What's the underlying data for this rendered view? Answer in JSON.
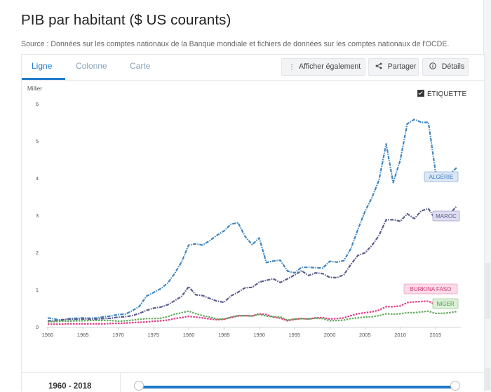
{
  "page": {
    "title": "PIB par habitant ($ US courants)",
    "source": "Source : Données sur les comptes nationaux de la Banque mondiale et fichiers de données sur les comptes nationaux de l'OCDE."
  },
  "tabs": [
    {
      "label": "Ligne",
      "active": true
    },
    {
      "label": "Colonne",
      "active": false
    },
    {
      "label": "Carte",
      "active": false
    }
  ],
  "toolbar": {
    "show_also_label": "Afficher également",
    "share_label": "Partager",
    "details_label": "Détails"
  },
  "label_toggle": {
    "label": "ÉTIQUETTE",
    "checked": true
  },
  "range": {
    "label": "1960 - 2018"
  },
  "colors": {
    "accent": "#1f79c8",
    "algerie": "#3f86c2",
    "maroc": "#5a5e8e",
    "burkina": "#e23a84",
    "niger": "#63ac5e"
  },
  "chart_data": {
    "type": "line",
    "ylabel": "Millier",
    "ylim": [
      0,
      6
    ],
    "yticks": [
      "0",
      "1",
      "2",
      "3",
      "4",
      "5",
      "6"
    ],
    "xlim": [
      1960,
      2018
    ],
    "xticks": [
      "1960",
      "1965",
      "1970",
      "1975",
      "1980",
      "1985",
      "1990",
      "1995",
      "2000",
      "2005",
      "2010",
      "2015"
    ],
    "x": [
      1960,
      1961,
      1962,
      1963,
      1964,
      1965,
      1966,
      1967,
      1968,
      1969,
      1970,
      1971,
      1972,
      1973,
      1974,
      1975,
      1976,
      1977,
      1978,
      1979,
      1980,
      1981,
      1982,
      1983,
      1984,
      1985,
      1986,
      1987,
      1988,
      1989,
      1990,
      1991,
      1992,
      1993,
      1994,
      1995,
      1996,
      1997,
      1998,
      1999,
      2000,
      2001,
      2002,
      2003,
      2004,
      2005,
      2006,
      2007,
      2008,
      2009,
      2010,
      2011,
      2012,
      2013,
      2014,
      2015,
      2016,
      2017,
      2018
    ],
    "series": [
      {
        "name": "ALGÉRIE",
        "color_key": "algerie",
        "values": [
          0.24,
          0.21,
          0.17,
          0.22,
          0.23,
          0.24,
          0.23,
          0.24,
          0.27,
          0.29,
          0.33,
          0.34,
          0.43,
          0.55,
          0.82,
          0.92,
          1.02,
          1.17,
          1.43,
          1.75,
          2.2,
          2.23,
          2.2,
          2.32,
          2.46,
          2.58,
          2.76,
          2.8,
          2.43,
          2.21,
          2.39,
          1.73,
          1.77,
          1.79,
          1.5,
          1.45,
          1.6,
          1.6,
          1.59,
          1.58,
          1.76,
          1.74,
          1.78,
          2.1,
          2.62,
          3.1,
          3.48,
          3.95,
          4.92,
          3.88,
          4.48,
          5.46,
          5.58,
          5.5,
          5.5,
          4.18,
          3.95,
          4.11,
          4.28
        ]
      },
      {
        "name": "MAROC",
        "color_key": "maroc",
        "values": [
          0.16,
          0.16,
          0.19,
          0.2,
          0.2,
          0.21,
          0.2,
          0.21,
          0.22,
          0.23,
          0.26,
          0.27,
          0.3,
          0.36,
          0.44,
          0.5,
          0.53,
          0.59,
          0.7,
          0.82,
          1.08,
          0.86,
          0.84,
          0.76,
          0.69,
          0.66,
          0.83,
          0.93,
          1.05,
          1.06,
          1.2,
          1.25,
          1.29,
          1.19,
          1.29,
          1.39,
          1.51,
          1.38,
          1.45,
          1.43,
          1.33,
          1.32,
          1.4,
          1.68,
          1.92,
          1.99,
          2.19,
          2.46,
          2.88,
          2.88,
          2.84,
          3.04,
          2.91,
          3.12,
          3.18,
          2.88,
          2.9,
          3.04,
          3.24
        ]
      },
      {
        "name": "BURKINA FASO",
        "color_key": "burkina",
        "values": [
          0.07,
          0.07,
          0.07,
          0.08,
          0.08,
          0.08,
          0.08,
          0.08,
          0.08,
          0.09,
          0.09,
          0.1,
          0.11,
          0.12,
          0.13,
          0.15,
          0.16,
          0.18,
          0.22,
          0.25,
          0.28,
          0.26,
          0.24,
          0.21,
          0.19,
          0.2,
          0.25,
          0.29,
          0.3,
          0.29,
          0.35,
          0.33,
          0.26,
          0.23,
          0.16,
          0.2,
          0.22,
          0.21,
          0.24,
          0.25,
          0.21,
          0.22,
          0.24,
          0.3,
          0.35,
          0.38,
          0.4,
          0.45,
          0.54,
          0.54,
          0.56,
          0.65,
          0.67,
          0.68,
          0.69,
          0.59,
          0.62,
          0.65,
          0.73
        ]
      },
      {
        "name": "NIGER",
        "color_key": "niger",
        "values": [
          0.13,
          0.14,
          0.15,
          0.15,
          0.16,
          0.16,
          0.17,
          0.17,
          0.17,
          0.17,
          0.15,
          0.16,
          0.18,
          0.2,
          0.22,
          0.22,
          0.23,
          0.27,
          0.34,
          0.38,
          0.42,
          0.35,
          0.3,
          0.26,
          0.21,
          0.21,
          0.26,
          0.3,
          0.3,
          0.29,
          0.33,
          0.29,
          0.27,
          0.27,
          0.18,
          0.21,
          0.22,
          0.21,
          0.23,
          0.22,
          0.16,
          0.17,
          0.18,
          0.22,
          0.24,
          0.26,
          0.27,
          0.3,
          0.35,
          0.34,
          0.35,
          0.38,
          0.38,
          0.4,
          0.42,
          0.36,
          0.36,
          0.38,
          0.41
        ]
      }
    ],
    "labels": [
      {
        "text": "ALGÉRIE",
        "series": 0
      },
      {
        "text": "MAROC",
        "series": 1
      },
      {
        "text": "BURKINA FASO",
        "series": 2
      },
      {
        "text": "NIGER",
        "series": 3
      }
    ],
    "grid": false,
    "legend": "inline-labels-right"
  }
}
